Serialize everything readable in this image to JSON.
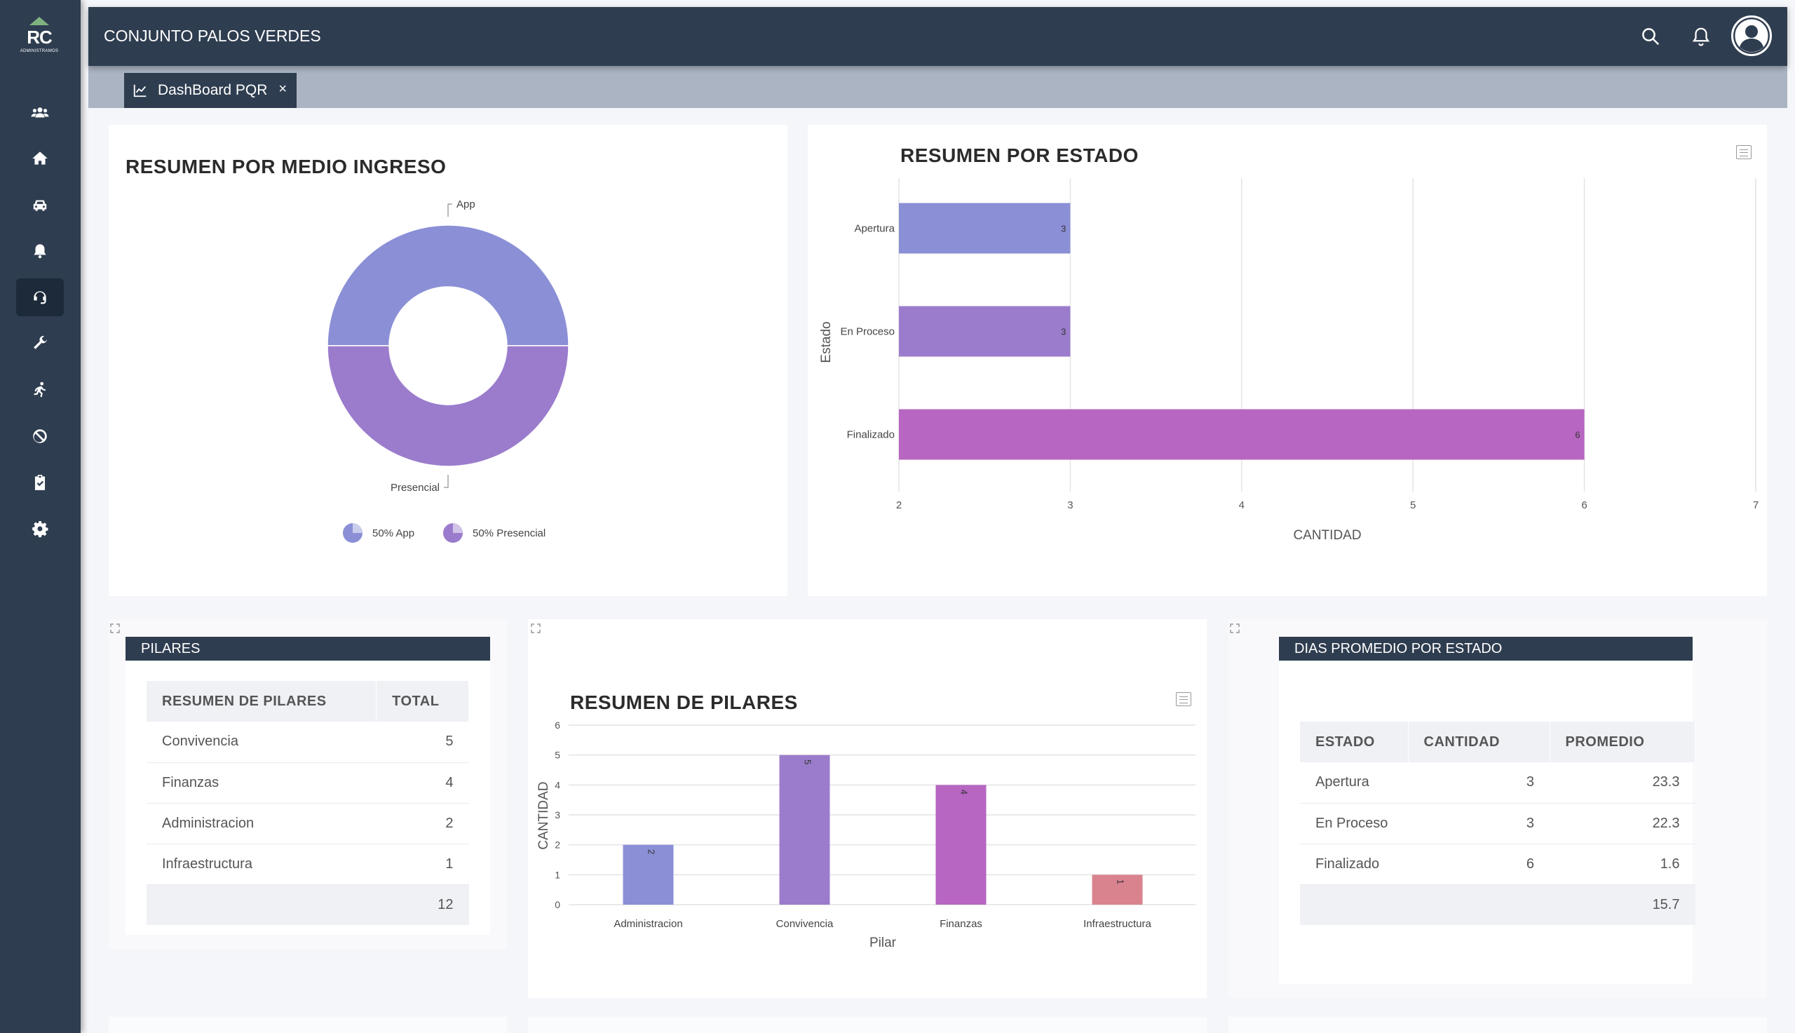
{
  "app": {
    "logo_text": "RC",
    "logo_sub": "ADMINISTRAMOS",
    "title": "CONJUNTO PALOS VERDES"
  },
  "sidebar": {
    "items": [
      {
        "icon": "users-icon"
      },
      {
        "icon": "home-icon"
      },
      {
        "icon": "car-icon"
      },
      {
        "icon": "bell-icon"
      },
      {
        "icon": "headset-icon",
        "active": true
      },
      {
        "icon": "wrench-icon"
      },
      {
        "icon": "running-icon"
      },
      {
        "icon": "ban-icon"
      },
      {
        "icon": "clipboard-check-icon"
      },
      {
        "icon": "gear-icon"
      }
    ]
  },
  "header": {
    "icons": [
      "search-icon",
      "bell-icon",
      "user-avatar-icon"
    ]
  },
  "tabs": [
    {
      "label": "DashBoard PQR",
      "close": "×",
      "icon": "chart-line-icon"
    }
  ],
  "donut": {
    "title": "RESUMEN POR MEDIO INGRESO",
    "legend": [
      "50% App",
      "50% Presencial"
    ],
    "colors": [
      "#8b8fd6",
      "#9b7ccc"
    ]
  },
  "estado_chart": {
    "title": "RESUMEN POR ESTADO",
    "xlabel": "CANTIDAD",
    "ylabel": "Estado",
    "colors": [
      "#8b8fd6",
      "#9b7ccc",
      "#b766c2"
    ]
  },
  "pilares_table": {
    "header": "PILARES",
    "columns": [
      "RESUMEN DE PILARES",
      "TOTAL"
    ],
    "rows": [
      {
        "name": "Convivencia",
        "total": "5"
      },
      {
        "name": "Finanzas",
        "total": "4"
      },
      {
        "name": "Administracion",
        "total": "2"
      },
      {
        "name": "Infraestructura",
        "total": "1"
      }
    ],
    "total": "12"
  },
  "pilares_chart": {
    "title": "RESUMEN DE PILARES",
    "xlabel": "Pilar",
    "ylabel": "CANTIDAD",
    "colors": [
      "#8b8fd6",
      "#9b7ccc",
      "#b766c2",
      "#d9838f"
    ]
  },
  "dias_table": {
    "header": "DIAS PROMEDIO POR ESTADO",
    "columns": [
      "ESTADO",
      "CANTIDAD",
      "PROMEDIO"
    ],
    "rows": [
      {
        "estado": "Apertura",
        "cantidad": "3",
        "promedio": "23.3"
      },
      {
        "estado": "En Proceso",
        "cantidad": "3",
        "promedio": "22.3"
      },
      {
        "estado": "Finalizado",
        "cantidad": "6",
        "promedio": "1.6"
      }
    ],
    "total": "15.7"
  },
  "chart_data": [
    {
      "type": "pie",
      "categories": [
        "App",
        "Presencial"
      ],
      "values": [
        50,
        50
      ]
    },
    {
      "type": "bar",
      "orientation": "horizontal",
      "categories": [
        "Apertura",
        "En Proceso",
        "Finalizado"
      ],
      "values": [
        3,
        3,
        6
      ],
      "xlim": [
        2,
        7
      ],
      "xticks": [
        2,
        3,
        4,
        5,
        6,
        7
      ],
      "xlabel": "CANTIDAD",
      "ylabel": "Estado",
      "grid": true
    },
    {
      "type": "bar",
      "categories": [
        "Administracion",
        "Convivencia",
        "Finanzas",
        "Infraestructura"
      ],
      "values": [
        2,
        5,
        4,
        1
      ],
      "ylim": [
        0,
        6
      ],
      "yticks": [
        0,
        1,
        2,
        3,
        4,
        5,
        6
      ],
      "xlabel": "Pilar",
      "ylabel": "CANTIDAD",
      "grid": true
    }
  ]
}
